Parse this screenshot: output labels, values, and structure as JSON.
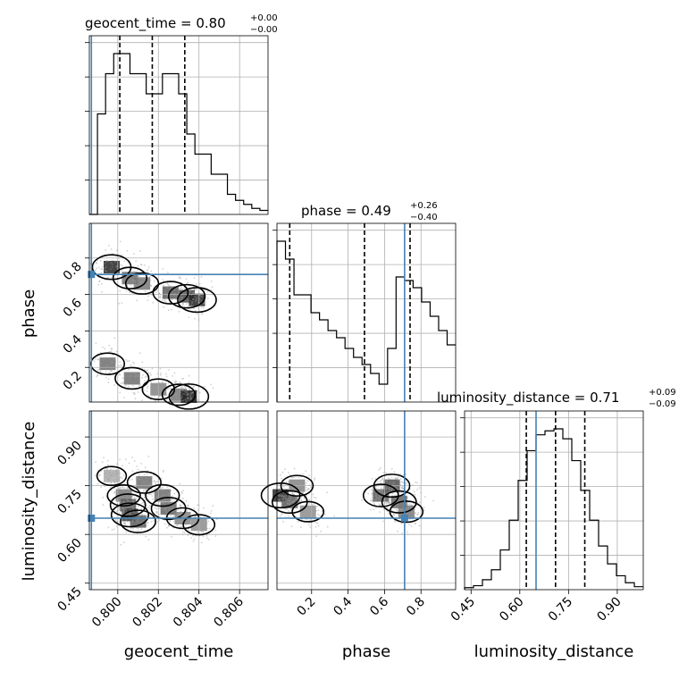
{
  "colors": {
    "truth": "#4682b4",
    "hist": "#000000",
    "grid": "#b0b0b0"
  },
  "titles": {
    "geocent_time": {
      "name": "geocent_time",
      "value": "0.80",
      "plus": "+0.00",
      "minus": "−0.00"
    },
    "phase": {
      "name": "phase",
      "value": "0.49",
      "plus": "+0.26",
      "minus": "−0.40"
    },
    "luminosity_distance": {
      "name": "luminosity_distance",
      "value": "0.71",
      "plus": "+0.09",
      "minus": "−0.09"
    }
  },
  "axis_labels": {
    "geocent_time": "geocent_time",
    "phase": "phase",
    "luminosity_distance": "luminosity_distance"
  },
  "chart_data": {
    "type": "corner",
    "parameters": [
      "geocent_time",
      "phase",
      "luminosity_distance"
    ],
    "ranges": {
      "geocent_time": [
        0.7986,
        0.8074
      ],
      "phase": [
        0.01,
        0.99
      ],
      "luminosity_distance": [
        0.43,
        0.98
      ]
    },
    "ticks": {
      "geocent_time": {
        "values": [
          0.8,
          0.802,
          0.804,
          0.806
        ],
        "labels": [
          "0.800",
          "0.802",
          "0.804",
          "0.806"
        ]
      },
      "phase": {
        "values": [
          0.2,
          0.4,
          0.6,
          0.8
        ],
        "labels": [
          "0.2",
          "0.4",
          "0.6",
          "0.8"
        ]
      },
      "luminosity_distance": {
        "values": [
          0.45,
          0.6,
          0.75,
          0.9
        ],
        "labels": [
          "0.45",
          "0.60",
          "0.75",
          "0.90"
        ]
      }
    },
    "truths": {
      "geocent_time": 0.7987,
      "phase": 0.71,
      "luminosity_distance": 0.65
    },
    "quantiles": {
      "geocent_time": [
        0.8001,
        0.8017,
        0.8033
      ],
      "phase": [
        0.08,
        0.49,
        0.74
      ],
      "luminosity_distance": [
        0.62,
        0.71,
        0.8
      ]
    },
    "histograms": {
      "geocent_time": {
        "counts": [
          0,
          5,
          7,
          8,
          8,
          7,
          7,
          6,
          6,
          7,
          7,
          6,
          4,
          3,
          3,
          2,
          2,
          1,
          0.7,
          0.5,
          0.3,
          0.2
        ]
      },
      "phase": {
        "counts": [
          9,
          8,
          6,
          6,
          5,
          4.6,
          4,
          3.6,
          3,
          2.5,
          2.1,
          1.6,
          1.0,
          3.0,
          7.0,
          6.8,
          6.4,
          5.6,
          4.8,
          4.0,
          3.2
        ]
      },
      "luminosity_distance": {
        "counts": [
          0.1,
          0.2,
          0.5,
          1,
          2,
          3.5,
          5.5,
          7,
          7.8,
          8,
          8.1,
          7.6,
          6.5,
          5,
          3.5,
          2.2,
          1.3,
          0.7,
          0.35,
          0.15
        ]
      }
    },
    "density_cells": {
      "phase_vs_geocent_time": [
        {
          "x": 0.7997,
          "y": 0.75,
          "d": 0.95
        },
        {
          "x": 0.8006,
          "y": 0.69,
          "d": 0.6
        },
        {
          "x": 0.8012,
          "y": 0.66,
          "d": 0.55
        },
        {
          "x": 0.8026,
          "y": 0.61,
          "d": 0.7
        },
        {
          "x": 0.8034,
          "y": 0.59,
          "d": 0.8
        },
        {
          "x": 0.8039,
          "y": 0.57,
          "d": 0.95
        },
        {
          "x": 0.7995,
          "y": 0.22,
          "d": 0.6
        },
        {
          "x": 0.8007,
          "y": 0.14,
          "d": 0.6
        },
        {
          "x": 0.802,
          "y": 0.08,
          "d": 0.5
        },
        {
          "x": 0.803,
          "y": 0.05,
          "d": 0.55
        },
        {
          "x": 0.8035,
          "y": 0.04,
          "d": 1.0
        }
      ],
      "luminosity_distance_vs_geocent_time": [
        {
          "x": 0.7997,
          "y": 0.78,
          "d": 0.3
        },
        {
          "x": 0.8003,
          "y": 0.72,
          "d": 0.55
        },
        {
          "x": 0.8005,
          "y": 0.69,
          "d": 0.7
        },
        {
          "x": 0.8006,
          "y": 0.66,
          "d": 0.85
        },
        {
          "x": 0.801,
          "y": 0.64,
          "d": 0.7
        },
        {
          "x": 0.8013,
          "y": 0.76,
          "d": 0.6
        },
        {
          "x": 0.8022,
          "y": 0.72,
          "d": 0.6
        },
        {
          "x": 0.8025,
          "y": 0.68,
          "d": 0.65
        },
        {
          "x": 0.8032,
          "y": 0.65,
          "d": 0.5
        },
        {
          "x": 0.804,
          "y": 0.63,
          "d": 0.45
        }
      ],
      "luminosity_distance_vs_phase": [
        {
          "x": 0.03,
          "y": 0.72,
          "d": 0.95
        },
        {
          "x": 0.08,
          "y": 0.7,
          "d": 0.7
        },
        {
          "x": 0.12,
          "y": 0.75,
          "d": 0.5
        },
        {
          "x": 0.18,
          "y": 0.67,
          "d": 0.45
        },
        {
          "x": 0.58,
          "y": 0.72,
          "d": 0.7
        },
        {
          "x": 0.64,
          "y": 0.75,
          "d": 0.75
        },
        {
          "x": 0.68,
          "y": 0.7,
          "d": 0.65
        },
        {
          "x": 0.72,
          "y": 0.67,
          "d": 0.55
        }
      ]
    },
    "grid": true,
    "scatter_samples": "grey"
  }
}
